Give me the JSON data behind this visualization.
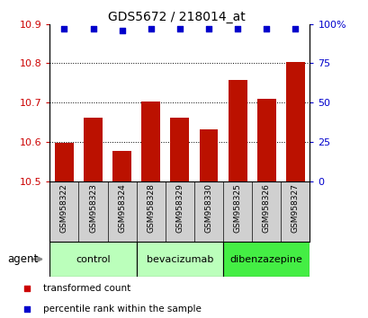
{
  "title": "GDS5672 / 218014_at",
  "samples": [
    "GSM958322",
    "GSM958323",
    "GSM958324",
    "GSM958328",
    "GSM958329",
    "GSM958330",
    "GSM958325",
    "GSM958326",
    "GSM958327"
  ],
  "transformed_counts": [
    10.597,
    10.662,
    10.578,
    10.703,
    10.662,
    10.632,
    10.758,
    10.71,
    10.803
  ],
  "percentile_ranks": [
    97,
    97,
    96,
    97,
    97,
    97,
    97,
    97,
    97
  ],
  "groups": [
    {
      "label": "control",
      "indices": [
        0,
        1,
        2
      ],
      "color": "#bbffbb"
    },
    {
      "label": "bevacizumab",
      "indices": [
        3,
        4,
        5
      ],
      "color": "#bbffbb"
    },
    {
      "label": "dibenzazepine",
      "indices": [
        6,
        7,
        8
      ],
      "color": "#44ee44"
    }
  ],
  "bar_color": "#bb1100",
  "dot_color": "#0000cc",
  "ylim_left": [
    10.5,
    10.9
  ],
  "ylim_right": [
    0,
    100
  ],
  "yticks_left": [
    10.5,
    10.6,
    10.7,
    10.8,
    10.9
  ],
  "yticks_right": [
    0,
    25,
    50,
    75,
    100
  ],
  "ytick_labels_right": [
    "0",
    "25",
    "50",
    "75",
    "100%"
  ],
  "bar_width": 0.65,
  "tick_color_left": "#cc0000",
  "tick_color_right": "#0000cc",
  "grid_color": "#000000",
  "sample_area_bg": "#d0d0d0",
  "agent_label": "agent",
  "legend_items": [
    {
      "label": "transformed count",
      "color": "#cc0000"
    },
    {
      "label": "percentile rank within the sample",
      "color": "#0000cc"
    }
  ]
}
